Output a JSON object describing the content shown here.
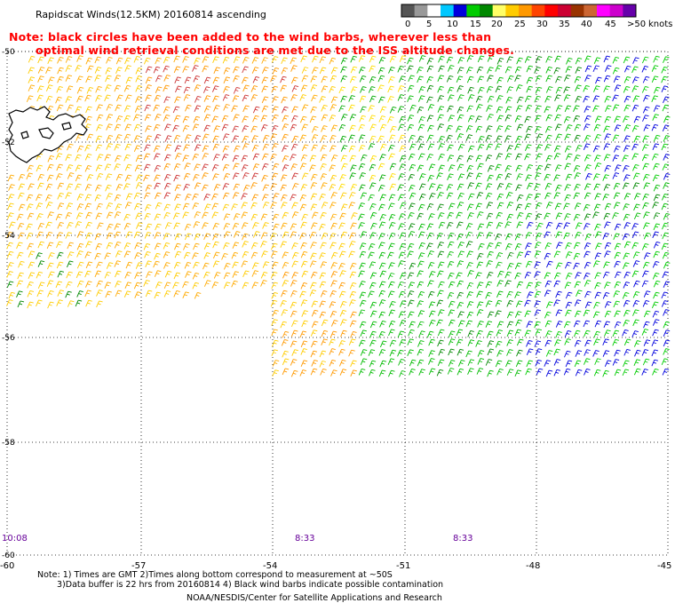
{
  "header": {
    "title": "Rapidscat Winds(12.5KM) 20160814 ascending",
    "note_line1": "Note: black circles have been added to the wind barbs, wherever less than",
    "note_line2": "optimal wind retrieval conditions are met due to the ISS altitude changes."
  },
  "legend": {
    "labels": [
      "0",
      "5",
      "10",
      "15",
      "20",
      "25",
      "30",
      "35",
      "40",
      "45",
      ">50"
    ],
    "unit": "knots",
    "colors": [
      "#555555",
      "#999999",
      "#ffffff",
      "#00c8ff",
      "#0000dd",
      "#00cc00",
      "#008800",
      "#ffff66",
      "#ffcc00",
      "#ff9900",
      "#ff4400",
      "#ff0000",
      "#cc0033",
      "#993300",
      "#cc6633",
      "#ff00ff",
      "#cc00cc",
      "#6600aa"
    ]
  },
  "axes": {
    "lat_labels": [
      "-50",
      "-52",
      "-54",
      "-56",
      "-58",
      "-60"
    ],
    "lon_labels": [
      "-60",
      "-57",
      "-54",
      "-51",
      "-48",
      "-45"
    ]
  },
  "time_labels": [
    "10:08",
    "8:33",
    "8:33"
  ],
  "footer": {
    "note_line1": "Note: 1) Times are GMT 2)Times along bottom correspond to measurement at ~50S",
    "note_line2": "3)Data buffer is 22 hrs from 20160814 4) Black wind barbs indicate possible contamination",
    "credit": "NOAA/NESDIS/Center for Satellite Applications and Research"
  }
}
